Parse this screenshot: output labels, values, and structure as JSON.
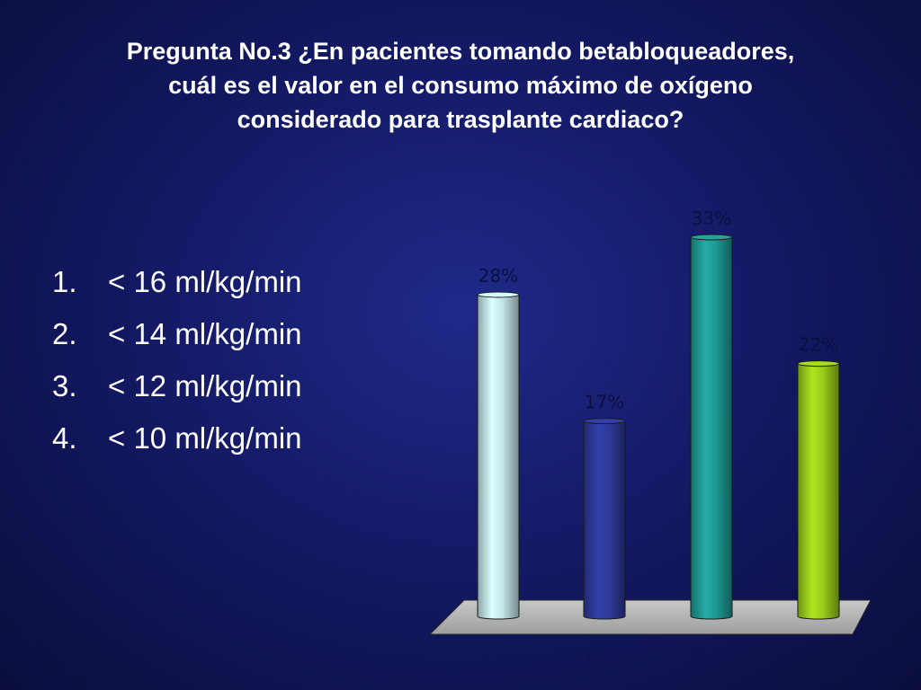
{
  "slide": {
    "title_lines": [
      "Pregunta No.3  ¿En pacientes tomando betabloqueadores,",
      "cuál es el valor en el consumo máximo de oxígeno",
      "considerado para trasplante cardiaco?"
    ],
    "options": [
      {
        "number": "1.",
        "text": "< 16 ml/kg/min"
      },
      {
        "number": "2.",
        "text": "< 14 ml/kg/min"
      },
      {
        "number": "3.",
        "text": "< 12 ml/kg/min"
      },
      {
        "number": "4.",
        "text": "< 10 ml/kg/min"
      }
    ]
  },
  "colors": {
    "background": "#141a66",
    "bar_1": "#c3e6ea",
    "bar_2": "#2e3a9a",
    "bar_3": "#1f9a93",
    "bar_4": "#9acd1c",
    "floor": "#b3b3b3",
    "label_text": "#0b1040"
  },
  "chart_data": {
    "type": "bar",
    "categories": [
      "1",
      "2",
      "3",
      "4"
    ],
    "values": [
      28,
      17,
      33,
      22
    ],
    "value_labels": [
      "28%",
      "17%",
      "33%",
      "22%"
    ],
    "unit": "%",
    "title": "",
    "xlabel": "",
    "ylabel": "",
    "ylim": [
      0,
      33
    ],
    "grid": false,
    "legend": "none",
    "style": "3d-cylinder"
  }
}
